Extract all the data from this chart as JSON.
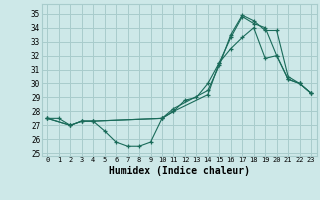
{
  "xlabel": "Humidex (Indice chaleur)",
  "xlim": [
    -0.5,
    23.5
  ],
  "ylim": [
    24.8,
    35.7
  ],
  "yticks": [
    25,
    26,
    27,
    28,
    29,
    30,
    31,
    32,
    33,
    34,
    35
  ],
  "xticks": [
    0,
    1,
    2,
    3,
    4,
    5,
    6,
    7,
    8,
    9,
    10,
    11,
    12,
    13,
    14,
    15,
    16,
    17,
    18,
    19,
    20,
    21,
    22,
    23
  ],
  "bg_color": "#cde8e8",
  "grid_color": "#a8cccc",
  "line_color": "#1a6b5a",
  "line1_x": [
    0,
    1,
    2,
    3,
    4,
    5,
    6,
    7,
    8,
    9,
    10,
    11,
    12,
    13,
    14,
    15,
    16,
    17,
    18,
    19,
    20,
    21,
    22,
    23
  ],
  "line1_y": [
    27.5,
    27.5,
    27.0,
    27.3,
    27.3,
    26.6,
    25.8,
    25.5,
    25.5,
    25.8,
    27.5,
    28.0,
    28.8,
    29.0,
    30.0,
    31.5,
    32.5,
    33.3,
    34.0,
    31.8,
    32.0,
    30.3,
    30.0,
    29.3
  ],
  "line2_x": [
    0,
    2,
    3,
    4,
    10,
    11,
    14,
    15,
    16,
    17,
    18,
    19,
    20,
    21,
    22,
    23
  ],
  "line2_y": [
    27.5,
    27.0,
    27.3,
    27.3,
    27.5,
    28.0,
    29.2,
    31.5,
    33.3,
    34.8,
    34.3,
    34.0,
    32.0,
    30.3,
    30.0,
    29.3
  ],
  "line3_x": [
    0,
    2,
    3,
    4,
    10,
    11,
    14,
    15,
    16,
    17,
    18,
    19,
    20,
    21,
    22,
    23
  ],
  "line3_y": [
    27.5,
    27.0,
    27.3,
    27.3,
    27.5,
    28.2,
    29.5,
    31.3,
    33.5,
    34.9,
    34.5,
    33.8,
    33.8,
    30.5,
    30.0,
    29.3
  ]
}
